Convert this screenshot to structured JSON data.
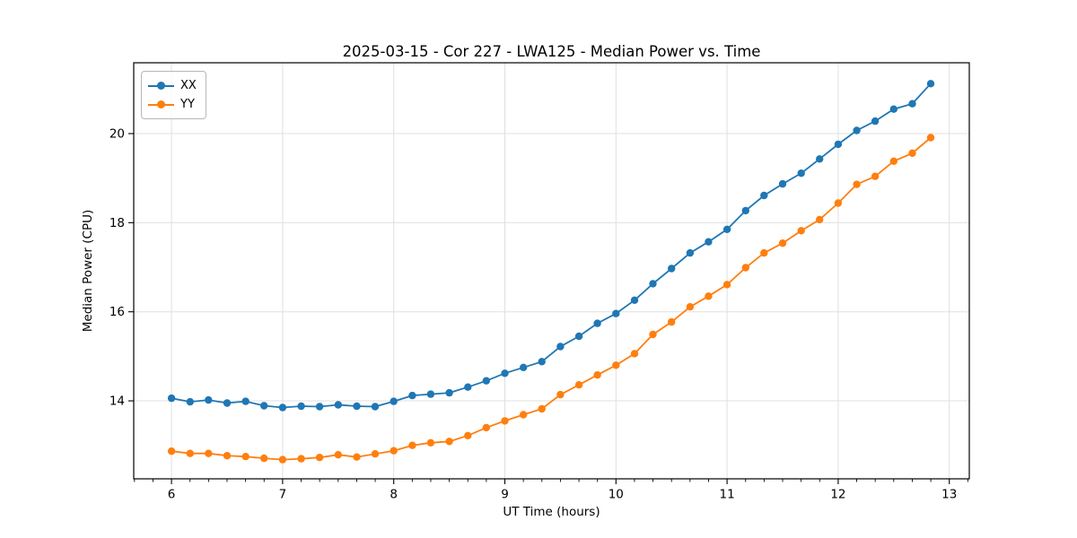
{
  "figure": {
    "title": "2025-03-15 - Cor 227 - LWA125 - Median Power vs. Time",
    "xlabel": "UT Time (hours)",
    "ylabel": "Median Power (CPU)"
  },
  "chart_data": {
    "type": "line",
    "title": "2025-03-15 - Cor 227 - LWA125 - Median Power vs. Time",
    "xlabel": "UT Time (hours)",
    "ylabel": "Median Power (CPU)",
    "xlim": [
      5.66,
      13.18
    ],
    "ylim": [
      12.25,
      21.59
    ],
    "xticks": [
      6,
      7,
      8,
      9,
      10,
      11,
      12,
      13
    ],
    "yticks": [
      14,
      16,
      18,
      20
    ],
    "x_minor_step": 0.1666667,
    "grid": true,
    "legend_position": "upper left",
    "background": "#ffffff",
    "grid_color": "#e0e0e0",
    "x": [
      6.0,
      6.167,
      6.333,
      6.5,
      6.667,
      6.833,
      7.0,
      7.167,
      7.333,
      7.5,
      7.667,
      7.833,
      8.0,
      8.167,
      8.333,
      8.5,
      8.667,
      8.833,
      9.0,
      9.167,
      9.333,
      9.5,
      9.667,
      9.833,
      10.0,
      10.167,
      10.333,
      10.5,
      10.667,
      10.833,
      11.0,
      11.167,
      11.333,
      11.5,
      11.667,
      11.833,
      12.0,
      12.167,
      12.333,
      12.5,
      12.667,
      12.833
    ],
    "series": [
      {
        "name": "XX",
        "color": "#1f77b4",
        "values": [
          14.06,
          13.98,
          14.02,
          13.95,
          13.99,
          13.89,
          13.85,
          13.88,
          13.87,
          13.91,
          13.88,
          13.87,
          13.99,
          14.12,
          14.15,
          14.18,
          14.31,
          14.45,
          14.62,
          14.75,
          14.88,
          15.22,
          15.45,
          15.74,
          15.96,
          16.26,
          16.63,
          16.97,
          17.32,
          17.57,
          17.85,
          18.27,
          18.61,
          18.87,
          19.11,
          19.43,
          19.76,
          20.07,
          20.28,
          20.55,
          20.67,
          21.12
        ]
      },
      {
        "name": "YY",
        "color": "#ff7f0e",
        "values": [
          12.87,
          12.82,
          12.82,
          12.77,
          12.75,
          12.71,
          12.68,
          12.7,
          12.73,
          12.79,
          12.74,
          12.81,
          12.88,
          13.0,
          13.06,
          13.09,
          13.22,
          13.4,
          13.55,
          13.69,
          13.82,
          14.14,
          14.36,
          14.58,
          14.8,
          15.06,
          15.49,
          15.77,
          16.11,
          16.35,
          16.61,
          16.99,
          17.32,
          17.54,
          17.82,
          18.07,
          18.44,
          18.86,
          19.04,
          19.38,
          19.56,
          19.91
        ]
      }
    ]
  }
}
